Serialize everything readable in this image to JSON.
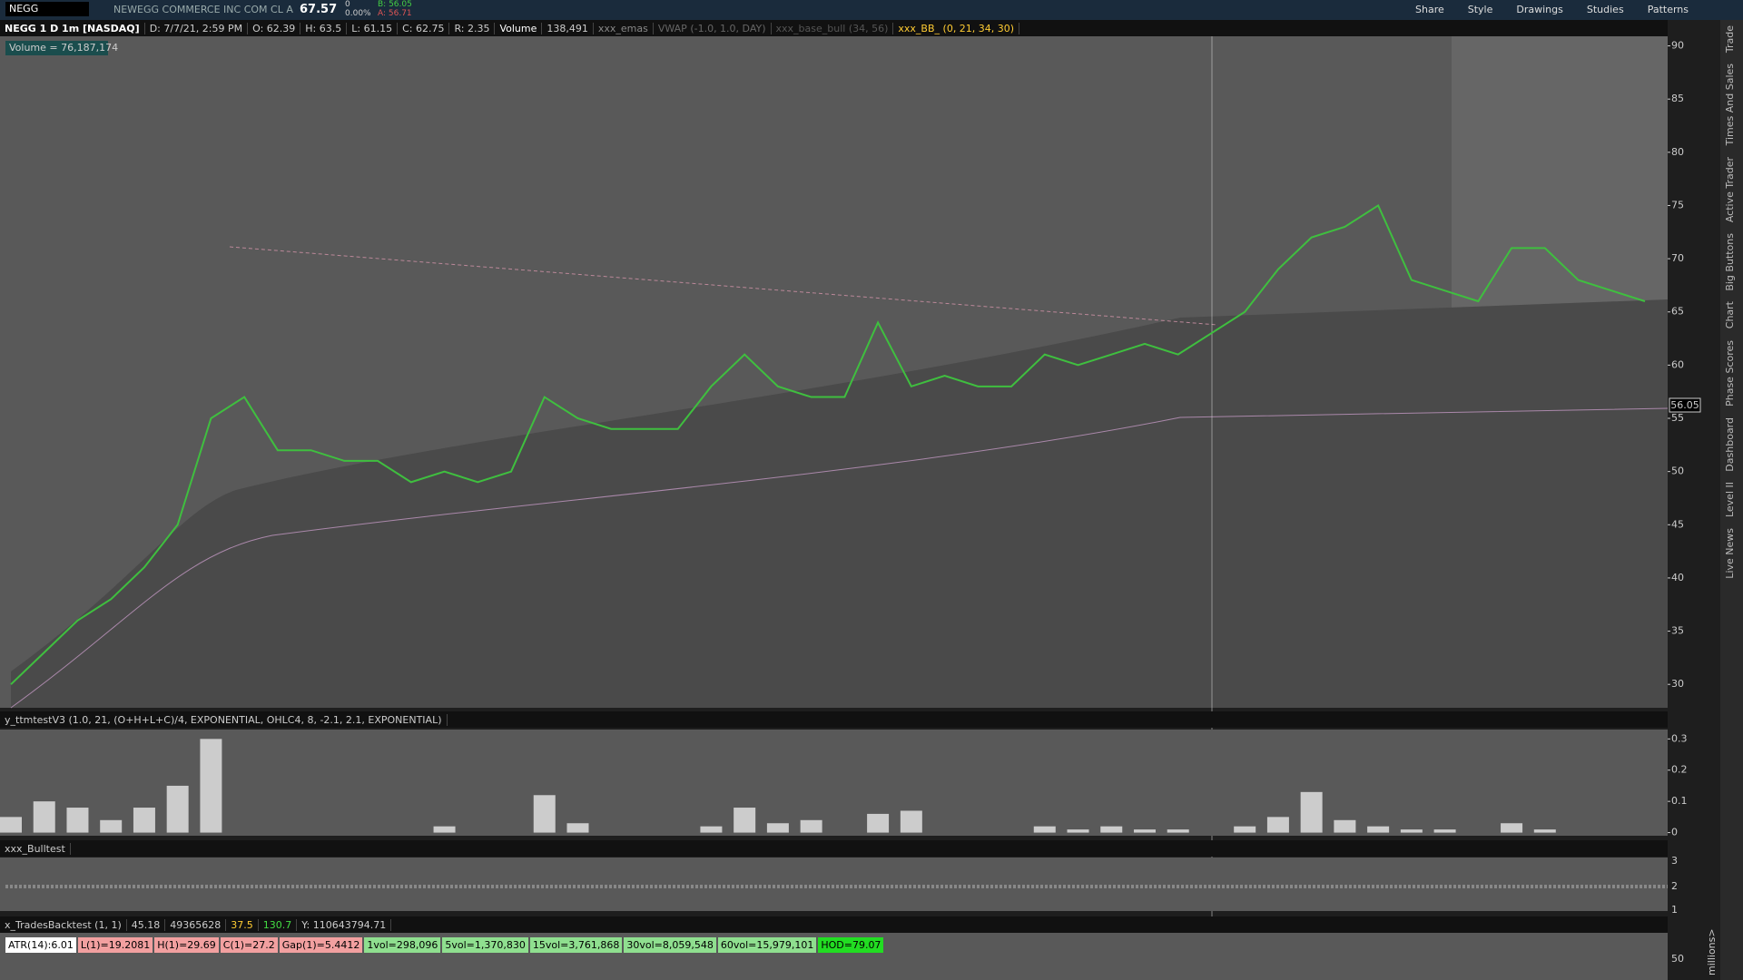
{
  "toolbar": {
    "symbol": "NEGG",
    "company": "NEWEGG COMMERCE INC COM CL A",
    "last": "67.57",
    "change": "0",
    "change_pct": "0.00%",
    "bid": "B: 56.05",
    "ask": "A: 56.71",
    "buttons": [
      "Share",
      "Style",
      "Drawings",
      "Studies",
      "Patterns"
    ]
  },
  "info_bar": [
    "NEGG 1 D 1m [NASDAQ]",
    "D: 7/7/21, 2:59 PM",
    "O: 62.39",
    "H: 63.5",
    "L: 61.15",
    "C: 62.75",
    "R: 2.35",
    "Volume",
    "138,491",
    "xxx_emas",
    "VWAP (-1.0, 1.0, DAY)",
    "xxx_base_bull (34, 56)",
    "xxx_BB_ (0, 21, 34, 30)"
  ],
  "volume_label": "Volume = 76,187,174",
  "price_marker": "56.05",
  "chart_data": [
    {
      "type": "line",
      "color": "#3fbf3f",
      "ylim": [
        27.8,
        90.9
      ],
      "yticks": [
        30,
        35,
        40,
        45,
        50,
        55,
        60,
        65,
        70,
        75,
        80,
        85,
        90
      ],
      "values": [
        30,
        33,
        36,
        38,
        41,
        45,
        55,
        57,
        52,
        52,
        51,
        51,
        49,
        50,
        49,
        50,
        57,
        55,
        54,
        54,
        54,
        58,
        61,
        58,
        57,
        57,
        64,
        58,
        59,
        58,
        58,
        61,
        60,
        61,
        62,
        61,
        63,
        65,
        69,
        72,
        73,
        75,
        68,
        67,
        66,
        71,
        71,
        68,
        67,
        66
      ]
    },
    {
      "type": "bar",
      "title": "y_ttmtestV3 (1.0, 21, (O+H+L+C)/4, EXPONENTIAL, OHLC4, 8, -2.1, 2.1, EXPONENTIAL)",
      "color": "#e8e8e8",
      "ylim": [
        -0.01,
        0.33
      ],
      "yticks": [
        0,
        0.1,
        0.2,
        0.3
      ],
      "values": [
        0.05,
        0.1,
        0.08,
        0.04,
        0.08,
        0.15,
        0.3,
        0,
        0,
        0,
        0,
        0,
        0,
        0.02,
        0,
        0,
        0.12,
        0.03,
        0,
        0,
        0,
        0.02,
        0.08,
        0.03,
        0.04,
        0,
        0.06,
        0.07,
        0,
        0,
        0,
        0.02,
        0.01,
        0.02,
        0.01,
        0.01,
        0,
        0.02,
        0.05,
        0.13,
        0.04,
        0.02,
        0.01,
        0.01,
        0,
        0.03,
        0.01,
        0,
        0,
        0
      ]
    }
  ],
  "bulltest": {
    "title": "xxx_Bulltest",
    "ticks": [
      "3",
      "2",
      "1"
    ]
  },
  "backtest": {
    "title": "x_TradesBacktest (1, 1)",
    "fields": [
      "45.18",
      "49365628",
      "37.5",
      "130.7",
      "Y: 110643794.71"
    ],
    "stats": [
      "ATR(14):6.01",
      "L(1)=19.2081",
      "H(1)=29.69",
      "C(1)=27.2",
      "Gap(1)=5.4412",
      "1vol=298,096",
      "5vol=1,370,830",
      "15vol=3,761,868",
      "30vol=8,059,548",
      "60vol=15,979,101",
      "HOD=79.07"
    ]
  },
  "volume_axis": {
    "tick": "50",
    "unit": "millions>"
  },
  "side_tabs": [
    "Trade",
    "Times And Sales",
    "Active Trader",
    "Big Buttons",
    "Chart",
    "Phase Scores",
    "Dashboard",
    "Level II",
    "Live News"
  ]
}
